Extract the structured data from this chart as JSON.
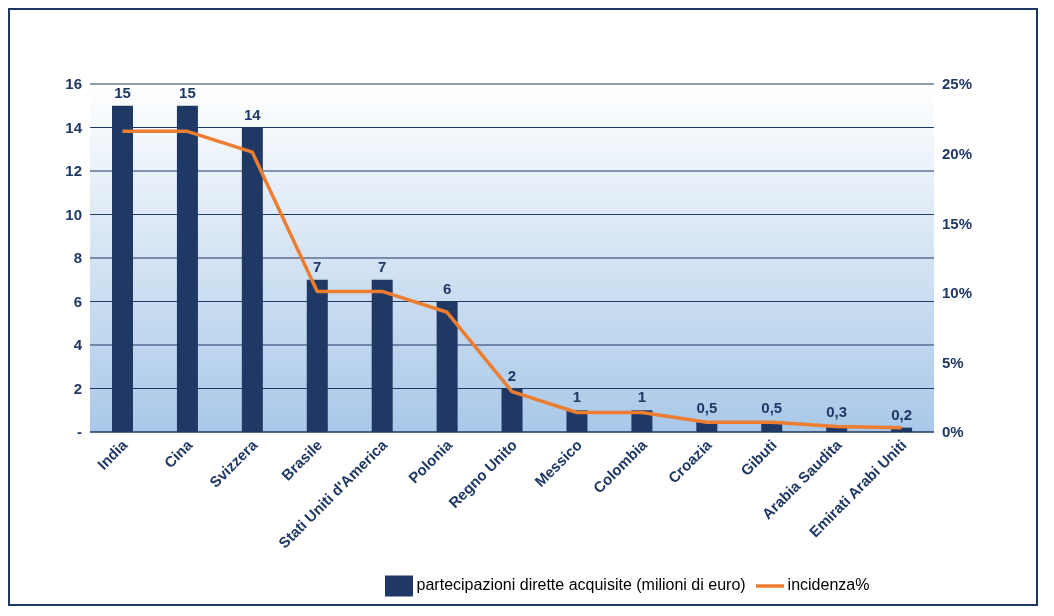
{
  "chart_data": {
    "type": "bar",
    "categories": [
      "India",
      "Cina",
      "Svizzera",
      "Brasile",
      "Stati Uniti d'America",
      "Polonia",
      "Regno Unito",
      "Messico",
      "Colombia",
      "Croazia",
      "Gibuti",
      "Arabia Saudita",
      "Emirati Arabi Uniti"
    ],
    "series": [
      {
        "name": "partecipazioni dirette acquisite (milioni di euro)",
        "color": "#1f3864",
        "values": [
          15,
          15,
          14,
          7,
          7,
          6,
          2,
          1,
          1,
          0.5,
          0.5,
          0.3,
          0.2
        ],
        "value_labels": [
          "15",
          "15",
          "14",
          "7",
          "7",
          "6",
          "2",
          "1",
          "1",
          "0,5",
          "0,5",
          "0,3",
          "0,2"
        ]
      },
      {
        "name": "incidenza%",
        "type": "line",
        "axis": "y2",
        "color": "#ed7d31",
        "values": [
          21.6,
          21.6,
          20.1,
          10.1,
          10.1,
          8.6,
          2.9,
          1.4,
          1.4,
          0.7,
          0.7,
          0.4,
          0.3
        ]
      }
    ],
    "ylim": [
      0,
      16
    ],
    "yticks": [
      {
        "value": 0,
        "label": "-"
      },
      2,
      4,
      6,
      8,
      10,
      12,
      14,
      16
    ],
    "y2lim": [
      0,
      25
    ],
    "y2ticks": [
      {
        "value": 0,
        "label": "0%"
      },
      {
        "value": 5,
        "label": "5%"
      },
      {
        "value": 10,
        "label": "10%"
      },
      {
        "value": 15,
        "label": "15%"
      },
      {
        "value": 20,
        "label": "20%"
      },
      {
        "value": 25,
        "label": "25%"
      }
    ],
    "grid": "y",
    "legend": "bottom"
  }
}
